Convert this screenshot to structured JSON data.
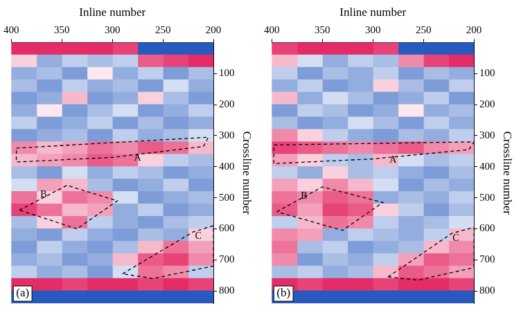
{
  "chart_data": [
    {
      "type": "heatmap",
      "panel": "(a)",
      "x_label": "Inline number",
      "y_label": "Crossline number",
      "xlim": [
        400,
        200
      ],
      "xticks": [
        400,
        350,
        300,
        250,
        200
      ],
      "ylim": [
        840,
        0
      ],
      "yticks": [
        100,
        200,
        300,
        400,
        500,
        600,
        700,
        800
      ],
      "grid": false,
      "zlim": [
        -1,
        1
      ],
      "cells": {
        "x": [
          212.5,
          237.5,
          262.5,
          287.5,
          312.5,
          337.5,
          362.5,
          387.5
        ],
        "y": [
          20,
          60,
          100,
          140,
          180,
          220,
          260,
          300,
          340,
          380,
          420,
          460,
          500,
          540,
          580,
          620,
          660,
          700,
          740,
          780,
          820
        ],
        "z": [
          [
            -1,
            -1,
            -1,
            0.8,
            0.9,
            0.9,
            0.9,
            0.9
          ],
          [
            0.9,
            0.8,
            0.7,
            -0.3,
            -0.4,
            -0.3,
            -0.5,
            0.2
          ],
          [
            -0.4,
            -0.6,
            -0.3,
            -0.5,
            0.1,
            -0.6,
            -0.4,
            -0.5
          ],
          [
            -0.5,
            -0.2,
            -0.6,
            -0.4,
            -0.5,
            -0.3,
            -0.6,
            -0.4
          ],
          [
            -0.6,
            -0.4,
            0.2,
            -0.5,
            -0.6,
            0.3,
            -0.5,
            -0.6
          ],
          [
            -0.3,
            -0.5,
            -0.6,
            -0.2,
            -0.4,
            -0.6,
            0.1,
            -0.5
          ],
          [
            -0.5,
            -0.6,
            -0.4,
            -0.6,
            -0.3,
            -0.5,
            -0.6,
            -0.3
          ],
          [
            -0.2,
            -0.4,
            -0.5,
            -0.3,
            -0.6,
            -0.4,
            -0.5,
            -0.6
          ],
          [
            0.3,
            0.6,
            0.7,
            0.5,
            0.6,
            0.4,
            0.3,
            0.5
          ],
          [
            -0.4,
            -0.3,
            0.2,
            0.6,
            0.7,
            0.5,
            0.4,
            0.3
          ],
          [
            -0.5,
            -0.6,
            -0.4,
            -0.3,
            -0.5,
            -0.2,
            -0.6,
            -0.4
          ],
          [
            -0.6,
            -0.3,
            -0.5,
            -0.6,
            -0.4,
            0.3,
            0.4,
            -0.2
          ],
          [
            -0.4,
            -0.5,
            -0.6,
            -0.2,
            0.5,
            0.6,
            0.2,
            0.6
          ],
          [
            -0.5,
            -0.6,
            -0.3,
            -0.5,
            0.4,
            0.3,
            0.6,
            0.8
          ],
          [
            -0.3,
            -0.4,
            -0.6,
            -0.5,
            -0.3,
            0.6,
            0.2,
            -0.4
          ],
          [
            0.2,
            -0.5,
            -0.4,
            -0.6,
            -0.5,
            -0.3,
            -0.6,
            -0.5
          ],
          [
            0.4,
            0.6,
            0.3,
            -0.4,
            -0.6,
            -0.5,
            -0.3,
            -0.6
          ],
          [
            0.5,
            0.8,
            0.7,
            0.3,
            -0.5,
            -0.6,
            -0.4,
            -0.5
          ],
          [
            -0.3,
            0.5,
            0.6,
            -0.2,
            -0.6,
            -0.4,
            -0.5,
            -0.3
          ],
          [
            0.8,
            0.9,
            0.8,
            0.9,
            0.9,
            0.8,
            0.9,
            0.9
          ],
          [
            -1,
            -1,
            -1,
            -1,
            -1,
            -1,
            -1,
            -1
          ]
        ]
      },
      "regions": [
        {
          "label": "A",
          "label_x": 275,
          "label_y": 372,
          "color": "#000000",
          "line_style": "dashed",
          "x": [
            395,
            205,
            210,
            300,
            395,
            395
          ],
          "y": [
            340,
            305,
            335,
            370,
            385,
            340
          ]
        },
        {
          "label": "B",
          "label_x": 368,
          "label_y": 490,
          "color": "#000000",
          "line_style": "dashed",
          "x": [
            392,
            345,
            295,
            335,
            392
          ],
          "y": [
            540,
            460,
            510,
            600,
            540
          ]
        },
        {
          "label": "C",
          "label_x": 215,
          "label_y": 625,
          "color": "#000000",
          "line_style": "dashed",
          "x": [
            290,
            220,
            200,
            200,
            260,
            290
          ],
          "y": [
            745,
            610,
            590,
            720,
            760,
            745
          ]
        }
      ]
    },
    {
      "type": "heatmap",
      "panel": "(b)",
      "x_label": "Inline number",
      "y_label": "Crossline number",
      "xlim": [
        400,
        200
      ],
      "xticks": [
        400,
        350,
        300,
        250,
        200
      ],
      "ylim": [
        840,
        0
      ],
      "yticks": [
        100,
        200,
        300,
        400,
        500,
        600,
        700,
        800
      ],
      "grid": false,
      "zlim": [
        -1,
        1
      ],
      "cells": {
        "x": [
          212.5,
          237.5,
          262.5,
          287.5,
          312.5,
          337.5,
          362.5,
          387.5
        ],
        "y": [
          20,
          60,
          100,
          140,
          180,
          220,
          260,
          300,
          340,
          380,
          420,
          460,
          500,
          540,
          580,
          620,
          660,
          700,
          740,
          780,
          820
        ],
        "z": [
          [
            -1,
            -1,
            -1,
            0.8,
            0.9,
            0.9,
            0.9,
            0.8
          ],
          [
            0.9,
            0.8,
            0.5,
            -0.4,
            -0.3,
            -0.5,
            -0.2,
            0.3
          ],
          [
            -0.5,
            -0.4,
            -0.6,
            -0.3,
            -0.5,
            -0.4,
            -0.6,
            -0.3
          ],
          [
            -0.3,
            -0.6,
            -0.4,
            0.2,
            -0.5,
            -0.6,
            -0.3,
            -0.5
          ],
          [
            -0.6,
            -0.3,
            -0.5,
            -0.6,
            -0.4,
            -0.2,
            -0.5,
            0.3
          ],
          [
            -0.4,
            -0.5,
            0.1,
            -0.5,
            -0.6,
            -0.4,
            -0.3,
            -0.6
          ],
          [
            -0.5,
            -0.3,
            -0.6,
            -0.4,
            -0.2,
            -0.5,
            -0.6,
            -0.4
          ],
          [
            -0.3,
            -0.5,
            -0.4,
            -0.6,
            -0.5,
            -0.3,
            0.2,
            0.5
          ],
          [
            0.4,
            0.5,
            0.7,
            0.6,
            0.5,
            0.6,
            0.7,
            0.8
          ],
          [
            -0.3,
            -0.4,
            -0.2,
            0.3,
            -0.4,
            -0.3,
            0.2,
            0.4
          ],
          [
            -0.4,
            -0.6,
            -0.5,
            -0.3,
            -0.4,
            0.2,
            -0.5,
            -0.3
          ],
          [
            -0.5,
            -0.4,
            -0.6,
            -0.2,
            0.3,
            0.5,
            0.2,
            0.4
          ],
          [
            -0.3,
            -0.5,
            -0.4,
            -0.5,
            0.6,
            0.7,
            0.5,
            0.6
          ],
          [
            -0.4,
            -0.6,
            -0.3,
            0.2,
            0.7,
            0.8,
            0.4,
            0.7
          ],
          [
            -0.2,
            -0.4,
            -0.5,
            -0.3,
            0.5,
            0.6,
            0.3,
            -0.3
          ],
          [
            0.3,
            -0.3,
            -0.5,
            -0.4,
            -0.3,
            -0.5,
            0.4,
            0.5
          ],
          [
            0.5,
            0.3,
            -0.4,
            -0.5,
            -0.6,
            -0.3,
            -0.4,
            0.6
          ],
          [
            0.6,
            0.7,
            0.4,
            -0.3,
            -0.5,
            -0.4,
            -0.6,
            0.5
          ],
          [
            0.4,
            0.6,
            0.7,
            0.3,
            -0.4,
            -0.5,
            -0.3,
            -0.4
          ],
          [
            0.8,
            0.9,
            0.9,
            0.8,
            0.9,
            0.9,
            0.8,
            0.9
          ],
          [
            -1,
            -1,
            -1,
            -1,
            -1,
            -1,
            -1,
            -1
          ]
        ]
      },
      "regions": [
        {
          "label": "A",
          "label_x": 280,
          "label_y": 380,
          "color": "#000000",
          "line_style": "dashed",
          "x": [
            398,
            200,
            205,
            300,
            398,
            398
          ],
          "y": [
            330,
            320,
            345,
            375,
            390,
            330
          ]
        },
        {
          "label": "B",
          "label_x": 368,
          "label_y": 495,
          "color": "#000000",
          "line_style": "dashed",
          "x": [
            395,
            350,
            290,
            330,
            395
          ],
          "y": [
            545,
            465,
            515,
            605,
            545
          ]
        },
        {
          "label": "C",
          "label_x": 218,
          "label_y": 630,
          "color": "#000000",
          "line_style": "dashed",
          "x": [
            285,
            222,
            200,
            200,
            255,
            285
          ],
          "y": [
            755,
            615,
            595,
            725,
            765,
            755
          ]
        }
      ]
    }
  ]
}
